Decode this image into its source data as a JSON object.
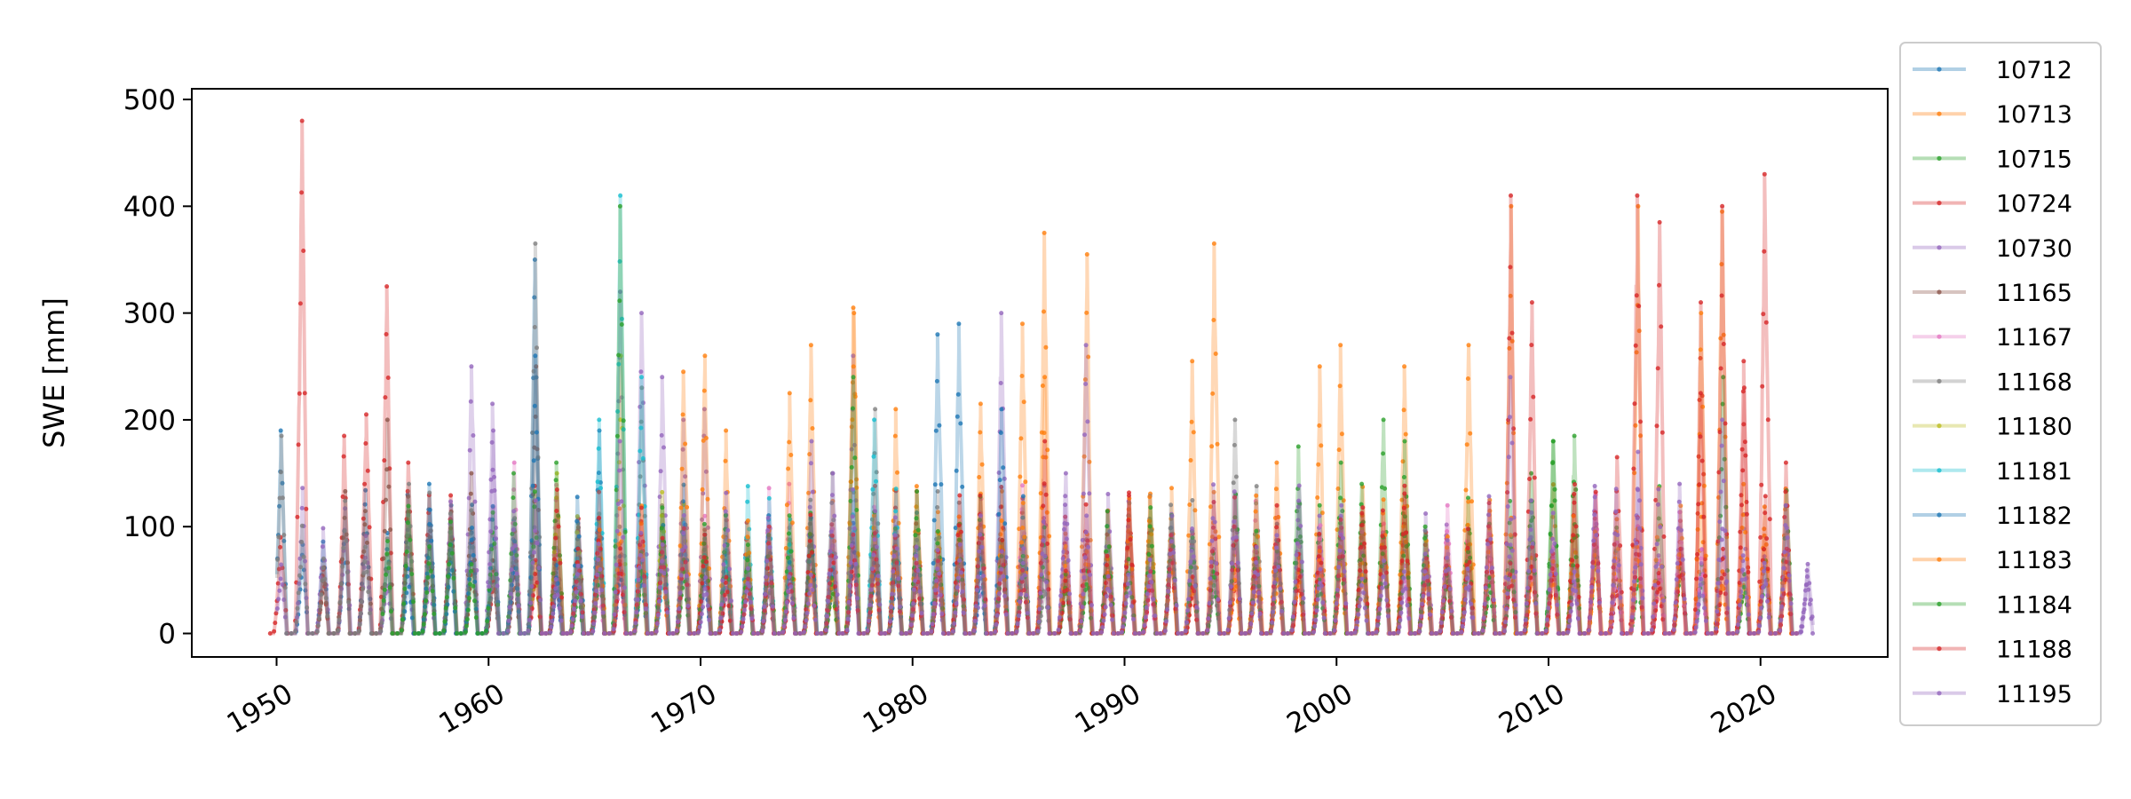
{
  "chart_data": {
    "type": "line",
    "title": "",
    "xlabel": "",
    "ylabel": "SWE [mm]",
    "xlim": [
      1946,
      2026
    ],
    "ylim": [
      -22,
      510
    ],
    "xticks": [
      1950,
      1960,
      1970,
      1980,
      1990,
      2000,
      2010,
      2020
    ],
    "yticks": [
      0,
      100,
      200,
      300,
      400,
      500
    ],
    "grid": false,
    "legend_position": "outside-right",
    "series": [
      {
        "name": "10712",
        "color": "#1f77b4",
        "start": 1950,
        "end": 1966,
        "peaks": [
          [
            1950.2,
            190
          ],
          [
            1957.2,
            140
          ],
          [
            1958.2,
            120
          ],
          [
            1962.2,
            350
          ],
          [
            1965.2,
            190
          ],
          [
            1966.2,
            300
          ]
        ]
      },
      {
        "name": "10713",
        "color": "#ff7f0e",
        "start": 1975,
        "end": 2022,
        "peaks": [
          [
            1975.3,
            270
          ],
          [
            1977.2,
            305
          ],
          [
            1979.2,
            210
          ],
          [
            1985.2,
            290
          ],
          [
            1986.2,
            375
          ],
          [
            1988.2,
            355
          ],
          [
            1993.2,
            255
          ],
          [
            1994.2,
            365
          ],
          [
            1997.2,
            160
          ],
          [
            1999.2,
            250
          ],
          [
            2000.2,
            270
          ],
          [
            2003.2,
            250
          ],
          [
            2006.2,
            270
          ],
          [
            2008.2,
            400
          ],
          [
            2014.2,
            400
          ],
          [
            2018.2,
            395
          ]
        ]
      },
      {
        "name": "10715",
        "color": "#2ca02c",
        "start": 1998,
        "end": 2022,
        "peaks": [
          [
            1998.2,
            175
          ],
          [
            1999.2,
            120
          ],
          [
            2000.3,
            160
          ],
          [
            2001.2,
            140
          ],
          [
            2002.2,
            200
          ],
          [
            2003.2,
            180
          ],
          [
            2009.2,
            150
          ],
          [
            2010.2,
            180
          ],
          [
            2011.2,
            185
          ],
          [
            2018.2,
            240
          ],
          [
            2022.2,
            130
          ]
        ]
      },
      {
        "name": "10724",
        "color": "#d62728",
        "start": 1949.7,
        "end": 2022,
        "peaks": [
          [
            1950.3,
            90
          ],
          [
            1951.2,
            480
          ],
          [
            1952.2,
            60
          ],
          [
            1953.2,
            185
          ],
          [
            1954.2,
            205
          ],
          [
            1955.2,
            325
          ],
          [
            1956.2,
            160
          ],
          [
            2008.2,
            410
          ],
          [
            2009.2,
            310
          ],
          [
            2014.2,
            410
          ],
          [
            2015.2,
            385
          ],
          [
            2017.2,
            310
          ],
          [
            2018.2,
            400
          ],
          [
            2019.2,
            255
          ],
          [
            2020.2,
            430
          ],
          [
            2021.2,
            160
          ]
        ]
      },
      {
        "name": "10730",
        "color": "#9467bd",
        "start": 1950,
        "end": 2022.5,
        "peaks": [
          [
            1959.2,
            250
          ],
          [
            1960.2,
            215
          ],
          [
            1966.2,
            320
          ],
          [
            1967.2,
            300
          ],
          [
            1968.2,
            240
          ],
          [
            1969.2,
            200
          ],
          [
            1970.2,
            210
          ],
          [
            1975.2,
            180
          ],
          [
            1977.2,
            260
          ],
          [
            1984.2,
            300
          ],
          [
            1988.2,
            270
          ],
          [
            2008.2,
            240
          ],
          [
            2014.2,
            170
          ]
        ]
      },
      {
        "name": "11165",
        "color": "#8c564b",
        "start": 1952,
        "end": 1966,
        "peaks": [
          [
            1955.2,
            200
          ],
          [
            1959.2,
            150
          ],
          [
            1962.2,
            250
          ]
        ]
      },
      {
        "name": "11167",
        "color": "#e377c2",
        "start": 1960,
        "end": 2018,
        "peaks": [
          [
            1961.2,
            160
          ],
          [
            1974.2,
            140
          ],
          [
            2005.2,
            120
          ],
          [
            2012.2,
            130
          ]
        ]
      },
      {
        "name": "11168",
        "color": "#7f7f7f",
        "start": 1950,
        "end": 1998,
        "peaks": [
          [
            1950.2,
            185
          ],
          [
            1952.2,
            70
          ],
          [
            1956.2,
            140
          ],
          [
            1962.2,
            365
          ],
          [
            1967.2,
            230
          ],
          [
            1976.2,
            150
          ],
          [
            1978.2,
            210
          ],
          [
            1995.2,
            200
          ]
        ]
      },
      {
        "name": "11180",
        "color": "#bcbd22",
        "start": 1962,
        "end": 1970,
        "peaks": [
          [
            1963.2,
            150
          ],
          [
            1966.2,
            260
          ]
        ]
      },
      {
        "name": "11181",
        "color": "#17becf",
        "start": 1964,
        "end": 1980,
        "peaks": [
          [
            1965.2,
            200
          ],
          [
            1966.2,
            410
          ],
          [
            1967.2,
            240
          ],
          [
            1978.2,
            200
          ]
        ]
      },
      {
        "name": "11182",
        "color": "#1f77b4",
        "start": 1956,
        "end": 1986,
        "peaks": [
          [
            1962.2,
            260
          ],
          [
            1981.2,
            280
          ],
          [
            1982.2,
            290
          ],
          [
            1984.2,
            210
          ]
        ]
      },
      {
        "name": "11183",
        "color": "#ff7f0e",
        "start": 1965,
        "end": 2022,
        "peaks": [
          [
            1969.2,
            245
          ],
          [
            1970.2,
            260
          ],
          [
            1971.2,
            190
          ],
          [
            1974.2,
            225
          ],
          [
            1977.2,
            300
          ],
          [
            1983.2,
            215
          ],
          [
            1986.2,
            240
          ],
          [
            2017.2,
            300
          ]
        ]
      },
      {
        "name": "11184",
        "color": "#2ca02c",
        "start": 1955,
        "end": 2012,
        "peaks": [
          [
            1961.2,
            150
          ],
          [
            1963.2,
            160
          ],
          [
            1966.2,
            400
          ],
          [
            1977.2,
            240
          ],
          [
            2010.2,
            180
          ]
        ]
      },
      {
        "name": "11188",
        "color": "#d62728",
        "start": 1962,
        "end": 2022,
        "peaks": [
          [
            1973.2,
            100
          ],
          [
            1986.2,
            180
          ],
          [
            2013.2,
            165
          ],
          [
            2017.2,
            225
          ],
          [
            2019.2,
            230
          ]
        ]
      },
      {
        "name": "11195",
        "color": "#9467bd",
        "start": 1960,
        "end": 2022.5,
        "peaks": [
          [
            1960.2,
            190
          ],
          [
            1966.2,
            180
          ],
          [
            1976.2,
            150
          ],
          [
            1987.2,
            150
          ],
          [
            1992.2,
            110
          ],
          [
            2000.2,
            120
          ],
          [
            2016.2,
            140
          ],
          [
            2018.2,
            200
          ],
          [
            2021.2,
            120
          ]
        ]
      }
    ]
  }
}
